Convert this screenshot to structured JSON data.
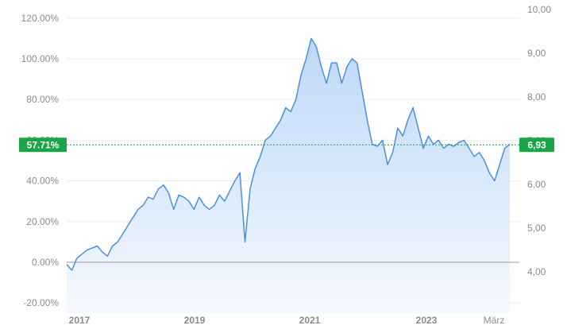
{
  "chart_data": {
    "type": "area",
    "colors": {
      "line": "#4a90e2",
      "fill_top": "#bcd8f8",
      "fill_bottom": "#f6f9fe",
      "marker": "#1aa547",
      "zero_line": "#999999",
      "grid": "#ececec"
    },
    "left_axis": {
      "ticks": [
        120,
        100,
        80,
        60,
        40,
        20,
        0,
        -20
      ],
      "tick_labels": [
        "120.00%",
        "100.00%",
        "80.00%",
        "60.00%",
        "40.00%",
        "20.00%",
        "0.00%",
        "-20.00%"
      ],
      "ylim": [
        -20,
        120
      ]
    },
    "right_axis": {
      "tick_labels": [
        "10,00",
        "9,00",
        "8,00",
        "7,00",
        "6,00",
        "5,00",
        "4,00"
      ]
    },
    "x_axis": {
      "tick_labels": [
        "2017",
        "2019",
        "2021",
        "2023",
        "März"
      ]
    },
    "current": {
      "percent_label": "57.71%",
      "price_label": "6,93",
      "percent": 57.71
    },
    "series": [
      {
        "x": [
          "2016-12",
          "2017-01",
          "2017-02",
          "2017-03",
          "2017-04",
          "2017-05",
          "2017-06",
          "2017-07",
          "2017-08",
          "2017-09",
          "2017-10",
          "2017-11",
          "2017-12",
          "2018-01",
          "2018-02",
          "2018-03",
          "2018-04",
          "2018-05",
          "2018-06",
          "2018-07",
          "2018-08",
          "2018-09",
          "2018-10",
          "2018-11",
          "2018-12",
          "2019-01",
          "2019-02",
          "2019-03",
          "2019-04",
          "2019-05",
          "2019-06",
          "2019-07",
          "2019-08",
          "2019-09",
          "2019-10",
          "2019-11",
          "2019-12",
          "2020-01",
          "2020-02",
          "2020-03",
          "2020-04",
          "2020-05",
          "2020-06",
          "2020-07",
          "2020-08",
          "2020-09",
          "2020-10",
          "2020-11",
          "2020-12",
          "2021-01",
          "2021-02",
          "2021-03",
          "2021-04",
          "2021-05",
          "2021-06",
          "2021-07",
          "2021-08",
          "2021-09",
          "2021-10",
          "2021-11",
          "2021-12",
          "2022-01",
          "2022-02",
          "2022-03",
          "2022-04",
          "2022-05",
          "2022-06",
          "2022-07",
          "2022-08",
          "2022-09",
          "2022-10",
          "2022-11",
          "2022-12",
          "2023-01",
          "2023-02",
          "2023-03",
          "2023-04",
          "2023-05",
          "2023-06",
          "2023-07",
          "2023-08",
          "2023-09",
          "2023-10",
          "2023-11",
          "2023-12",
          "2024-01",
          "2024-02",
          "2024-03"
        ],
        "values": [
          -1,
          -4,
          2,
          4,
          6,
          7,
          8,
          5,
          3,
          8,
          10,
          14,
          18,
          22,
          26,
          28,
          32,
          31,
          36,
          38,
          34,
          26,
          33,
          32,
          30,
          26,
          32,
          28,
          26,
          28,
          33,
          30,
          35,
          40,
          44,
          10,
          36,
          46,
          52,
          60,
          62,
          66,
          70,
          76,
          74,
          80,
          92,
          100,
          110,
          106,
          96,
          88,
          98,
          98,
          88,
          96,
          100,
          98,
          84,
          70,
          58,
          57,
          60,
          48,
          54,
          66,
          62,
          70,
          76,
          66,
          56,
          62,
          58,
          60,
          56,
          58,
          57,
          59,
          60,
          56,
          52,
          54,
          50,
          44,
          40,
          48,
          56,
          58
        ]
      }
    ]
  }
}
